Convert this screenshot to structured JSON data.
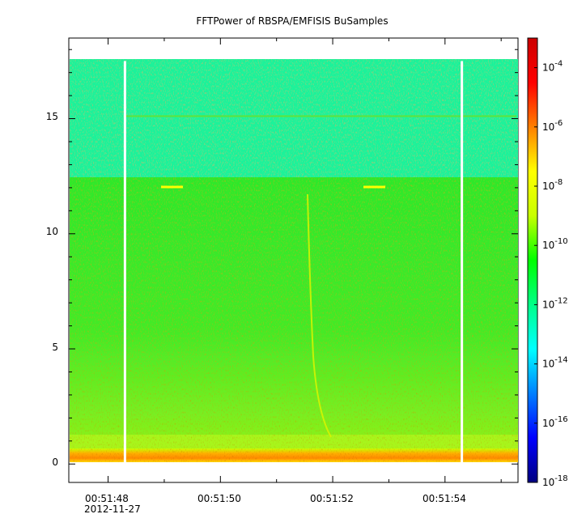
{
  "chart_data": {
    "type": "heatmap",
    "title": "FFTPower of RBSPA/EMFISIS  BuSamples",
    "xlabel": "",
    "ylabel": "",
    "date_label": "2012-11-27",
    "x_ticks": [
      "00:51:48",
      "00:51:50",
      "00:51:52",
      "00:51:54"
    ],
    "y_ticks": [
      "0",
      "5",
      "10",
      "15"
    ],
    "ylim": [
      -0.8,
      18.5
    ],
    "xlim": [
      "00:51:47.3",
      "00:51:55.3"
    ],
    "data_top_y": 17.5,
    "gaps": [
      "00:51:48.3",
      "00:51:54.3"
    ],
    "colorbar": {
      "scale": "log",
      "range": [
        1e-18,
        0.001
      ],
      "tick_labels": [
        {
          "base": "10",
          "exp": "-4"
        },
        {
          "base": "10",
          "exp": "-6"
        },
        {
          "base": "10",
          "exp": "-8"
        },
        {
          "base": "10",
          "exp": "-10"
        },
        {
          "base": "10",
          "exp": "-12"
        },
        {
          "base": "10",
          "exp": "-14"
        },
        {
          "base": "10",
          "exp": "-16"
        },
        {
          "base": "10",
          "exp": "-18"
        }
      ],
      "colors": [
        "#00007f",
        "#0000ff",
        "#007fff",
        "#00ffff",
        "#00ff88",
        "#00ff00",
        "#c8ff00",
        "#ffff00",
        "#ff7f00",
        "#ff0000",
        "#cc0000"
      ]
    }
  }
}
